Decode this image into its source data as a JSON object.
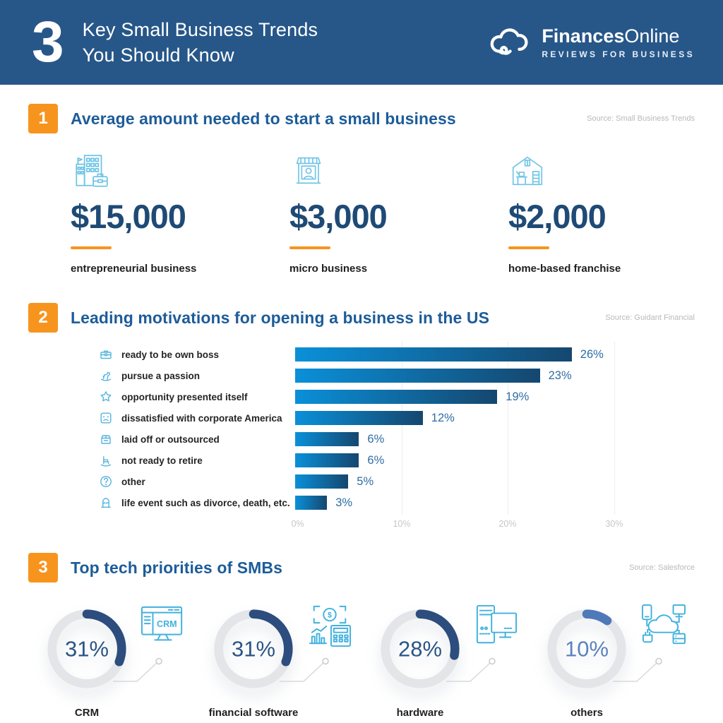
{
  "header": {
    "count": "3",
    "title_line1": "Key Small Business Trends",
    "title_line2": "You Should Know",
    "brand_bold": "Finances",
    "brand_light": "Online",
    "tagline": "REVIEWS FOR BUSINESS"
  },
  "section1": {
    "badge": "1",
    "title": "Average amount needed to start a small business",
    "source": "Source: Small Business Trends",
    "stats": [
      {
        "amount": "$15,000",
        "label": "entrepreneurial business",
        "icon": "office-building-briefcase"
      },
      {
        "amount": "$3,000",
        "label": "micro business",
        "icon": "storefront"
      },
      {
        "amount": "$2,000",
        "label": "home-based franchise",
        "icon": "home-office"
      }
    ]
  },
  "section2": {
    "badge": "2",
    "title": "Leading motivations for opening a business in the US",
    "source": "Source: Guidant Financial",
    "rows": [
      {
        "label": "ready to be own boss",
        "value_label": "26%",
        "icon": "briefcase"
      },
      {
        "label": "pursue a passion",
        "value_label": "23%",
        "icon": "rocking-horse"
      },
      {
        "label": "opportunity presented itself",
        "value_label": "19%",
        "icon": "star"
      },
      {
        "label": "dissatisfied with corporate America",
        "value_label": "12%",
        "icon": "sad-face"
      },
      {
        "label": "laid off or outsourced",
        "value_label": "6%",
        "icon": "box"
      },
      {
        "label": "not ready to retire",
        "value_label": "6%",
        "icon": "rocking-chair"
      },
      {
        "label": "other",
        "value_label": "5%",
        "icon": "question-circle"
      },
      {
        "label": "life event such as divorce, death, etc.",
        "value_label": "3%",
        "icon": "tombstone"
      }
    ],
    "axis_ticks": [
      "0%",
      "10%",
      "20%",
      "30%"
    ]
  },
  "section3": {
    "badge": "3",
    "title": "Top tech priorities of SMBs",
    "source": "Source: Salesforce",
    "donuts": [
      {
        "percent_label": "31%",
        "label": "CRM",
        "icon": "crm-monitor"
      },
      {
        "percent_label": "31%",
        "label": "financial software",
        "icon": "finance-tools"
      },
      {
        "percent_label": "28%",
        "label": "hardware",
        "icon": "computer-hardware"
      },
      {
        "percent_label": "10%",
        "label": "others",
        "icon": "cloud-network"
      }
    ]
  },
  "chart_data": [
    {
      "type": "bar",
      "orientation": "horizontal",
      "title": "Leading motivations for opening a business in the US",
      "source": "Guidant Financial",
      "categories": [
        "ready to be own boss",
        "pursue a passion",
        "opportunity presented itself",
        "dissatisfied with corporate America",
        "laid off or outsourced",
        "not ready to retire",
        "other",
        "life event such as divorce, death, etc."
      ],
      "values": [
        26,
        23,
        19,
        12,
        6,
        6,
        5,
        3
      ],
      "unit": "%",
      "xlim": [
        0,
        30
      ],
      "xticks": [
        "0%",
        "10%",
        "20%",
        "30%"
      ],
      "grid": true,
      "legend": false,
      "bar_gradient": [
        "#0a90d9",
        "#15476f"
      ]
    },
    {
      "type": "pie",
      "variant": "donut",
      "title": "Top tech priorities of SMBs",
      "source": "Salesforce",
      "categories": [
        "CRM",
        "financial software",
        "hardware",
        "others"
      ],
      "values": [
        31,
        31,
        28,
        10
      ],
      "unit": "%"
    },
    {
      "type": "table",
      "title": "Average amount needed to start a small business",
      "source": "Small Business Trends",
      "categories": [
        "entrepreneurial business",
        "micro business",
        "home-based franchise"
      ],
      "values": [
        15000,
        3000,
        2000
      ],
      "value_labels": [
        "$15,000",
        "$3,000",
        "$2,000"
      ],
      "unit": "USD"
    }
  ],
  "colors": {
    "header_bg": "#275789",
    "accent_orange": "#f7941e",
    "title_blue": "#1d5c99",
    "navy": "#1e4a75",
    "bar_start": "#0a90d9",
    "bar_end": "#15476f",
    "icon_teal": "#54b4dd",
    "donut_arc": "#2c4d7d",
    "donut_arc_light": "#4f79b8"
  }
}
